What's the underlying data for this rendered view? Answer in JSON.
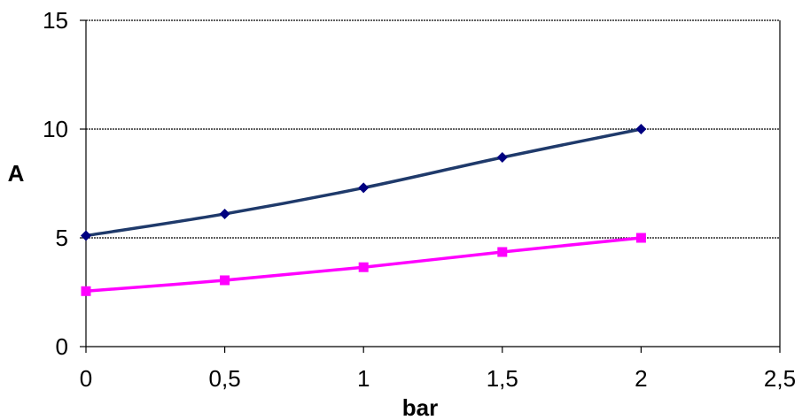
{
  "chart_data": {
    "type": "line",
    "title": "",
    "xlabel": "bar",
    "ylabel": "A",
    "xlim": [
      0,
      2.5
    ],
    "ylim": [
      0,
      15
    ],
    "x_ticks": [
      {
        "value": 0,
        "label": "0"
      },
      {
        "value": 0.5,
        "label": "0,5"
      },
      {
        "value": 1,
        "label": "1"
      },
      {
        "value": 1.5,
        "label": "1,5"
      },
      {
        "value": 2,
        "label": "2"
      },
      {
        "value": 2.5,
        "label": "2,5"
      }
    ],
    "y_ticks": [
      {
        "value": 0,
        "label": "0"
      },
      {
        "value": 5,
        "label": "5"
      },
      {
        "value": 10,
        "label": "10"
      },
      {
        "value": 15,
        "label": "15"
      }
    ],
    "grid": "horizontal-dashed",
    "legend": "none",
    "series": [
      {
        "color": "#1F3A6B",
        "marker": "diamond",
        "marker_color": "#000080",
        "x": [
          0,
          0.5,
          1,
          1.5,
          2
        ],
        "y": [
          5.1,
          6.1,
          7.3,
          8.7,
          10.0
        ]
      },
      {
        "color": "#FF00FF",
        "marker": "square",
        "marker_color": "#FF00FF",
        "x": [
          0,
          0.5,
          1,
          1.5,
          2
        ],
        "y": [
          2.55,
          3.05,
          3.65,
          4.35,
          5.0
        ]
      }
    ]
  }
}
